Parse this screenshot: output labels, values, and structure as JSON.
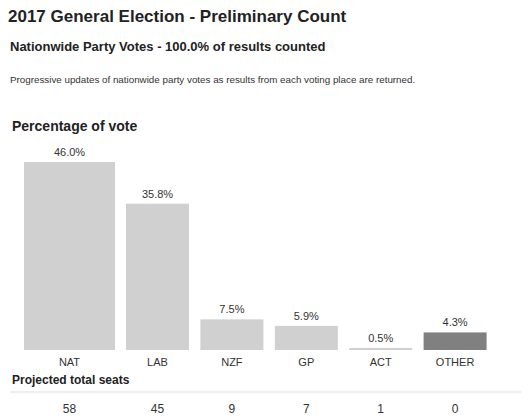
{
  "header": {
    "title": "2017 General Election - Preliminary Count",
    "subtitle": "Nationwide Party Votes - 100.0% of results counted",
    "note": "Progressive updates of nationwide party votes as results from each voting place are returned."
  },
  "chart_data": {
    "type": "bar",
    "title": "Percentage of vote",
    "categories": [
      "NAT",
      "LAB",
      "NZF",
      "GP",
      "ACT",
      "OTHER"
    ],
    "values": [
      46.0,
      35.8,
      7.5,
      5.9,
      0.5,
      4.3
    ],
    "value_labels": [
      "46.0%",
      "35.8%",
      "7.5%",
      "5.9%",
      "0.5%",
      "4.3%"
    ],
    "colors": [
      "#d0d0d0",
      "#d0d0d0",
      "#d0d0d0",
      "#d0d0d0",
      "#d0d0d0",
      "#808080"
    ],
    "ylim": [
      0,
      46
    ],
    "data_labels": true,
    "tick_labels": "x",
    "grid": false
  },
  "seats": {
    "title": "Projected total seats",
    "values": [
      58,
      45,
      9,
      7,
      1,
      0
    ]
  }
}
